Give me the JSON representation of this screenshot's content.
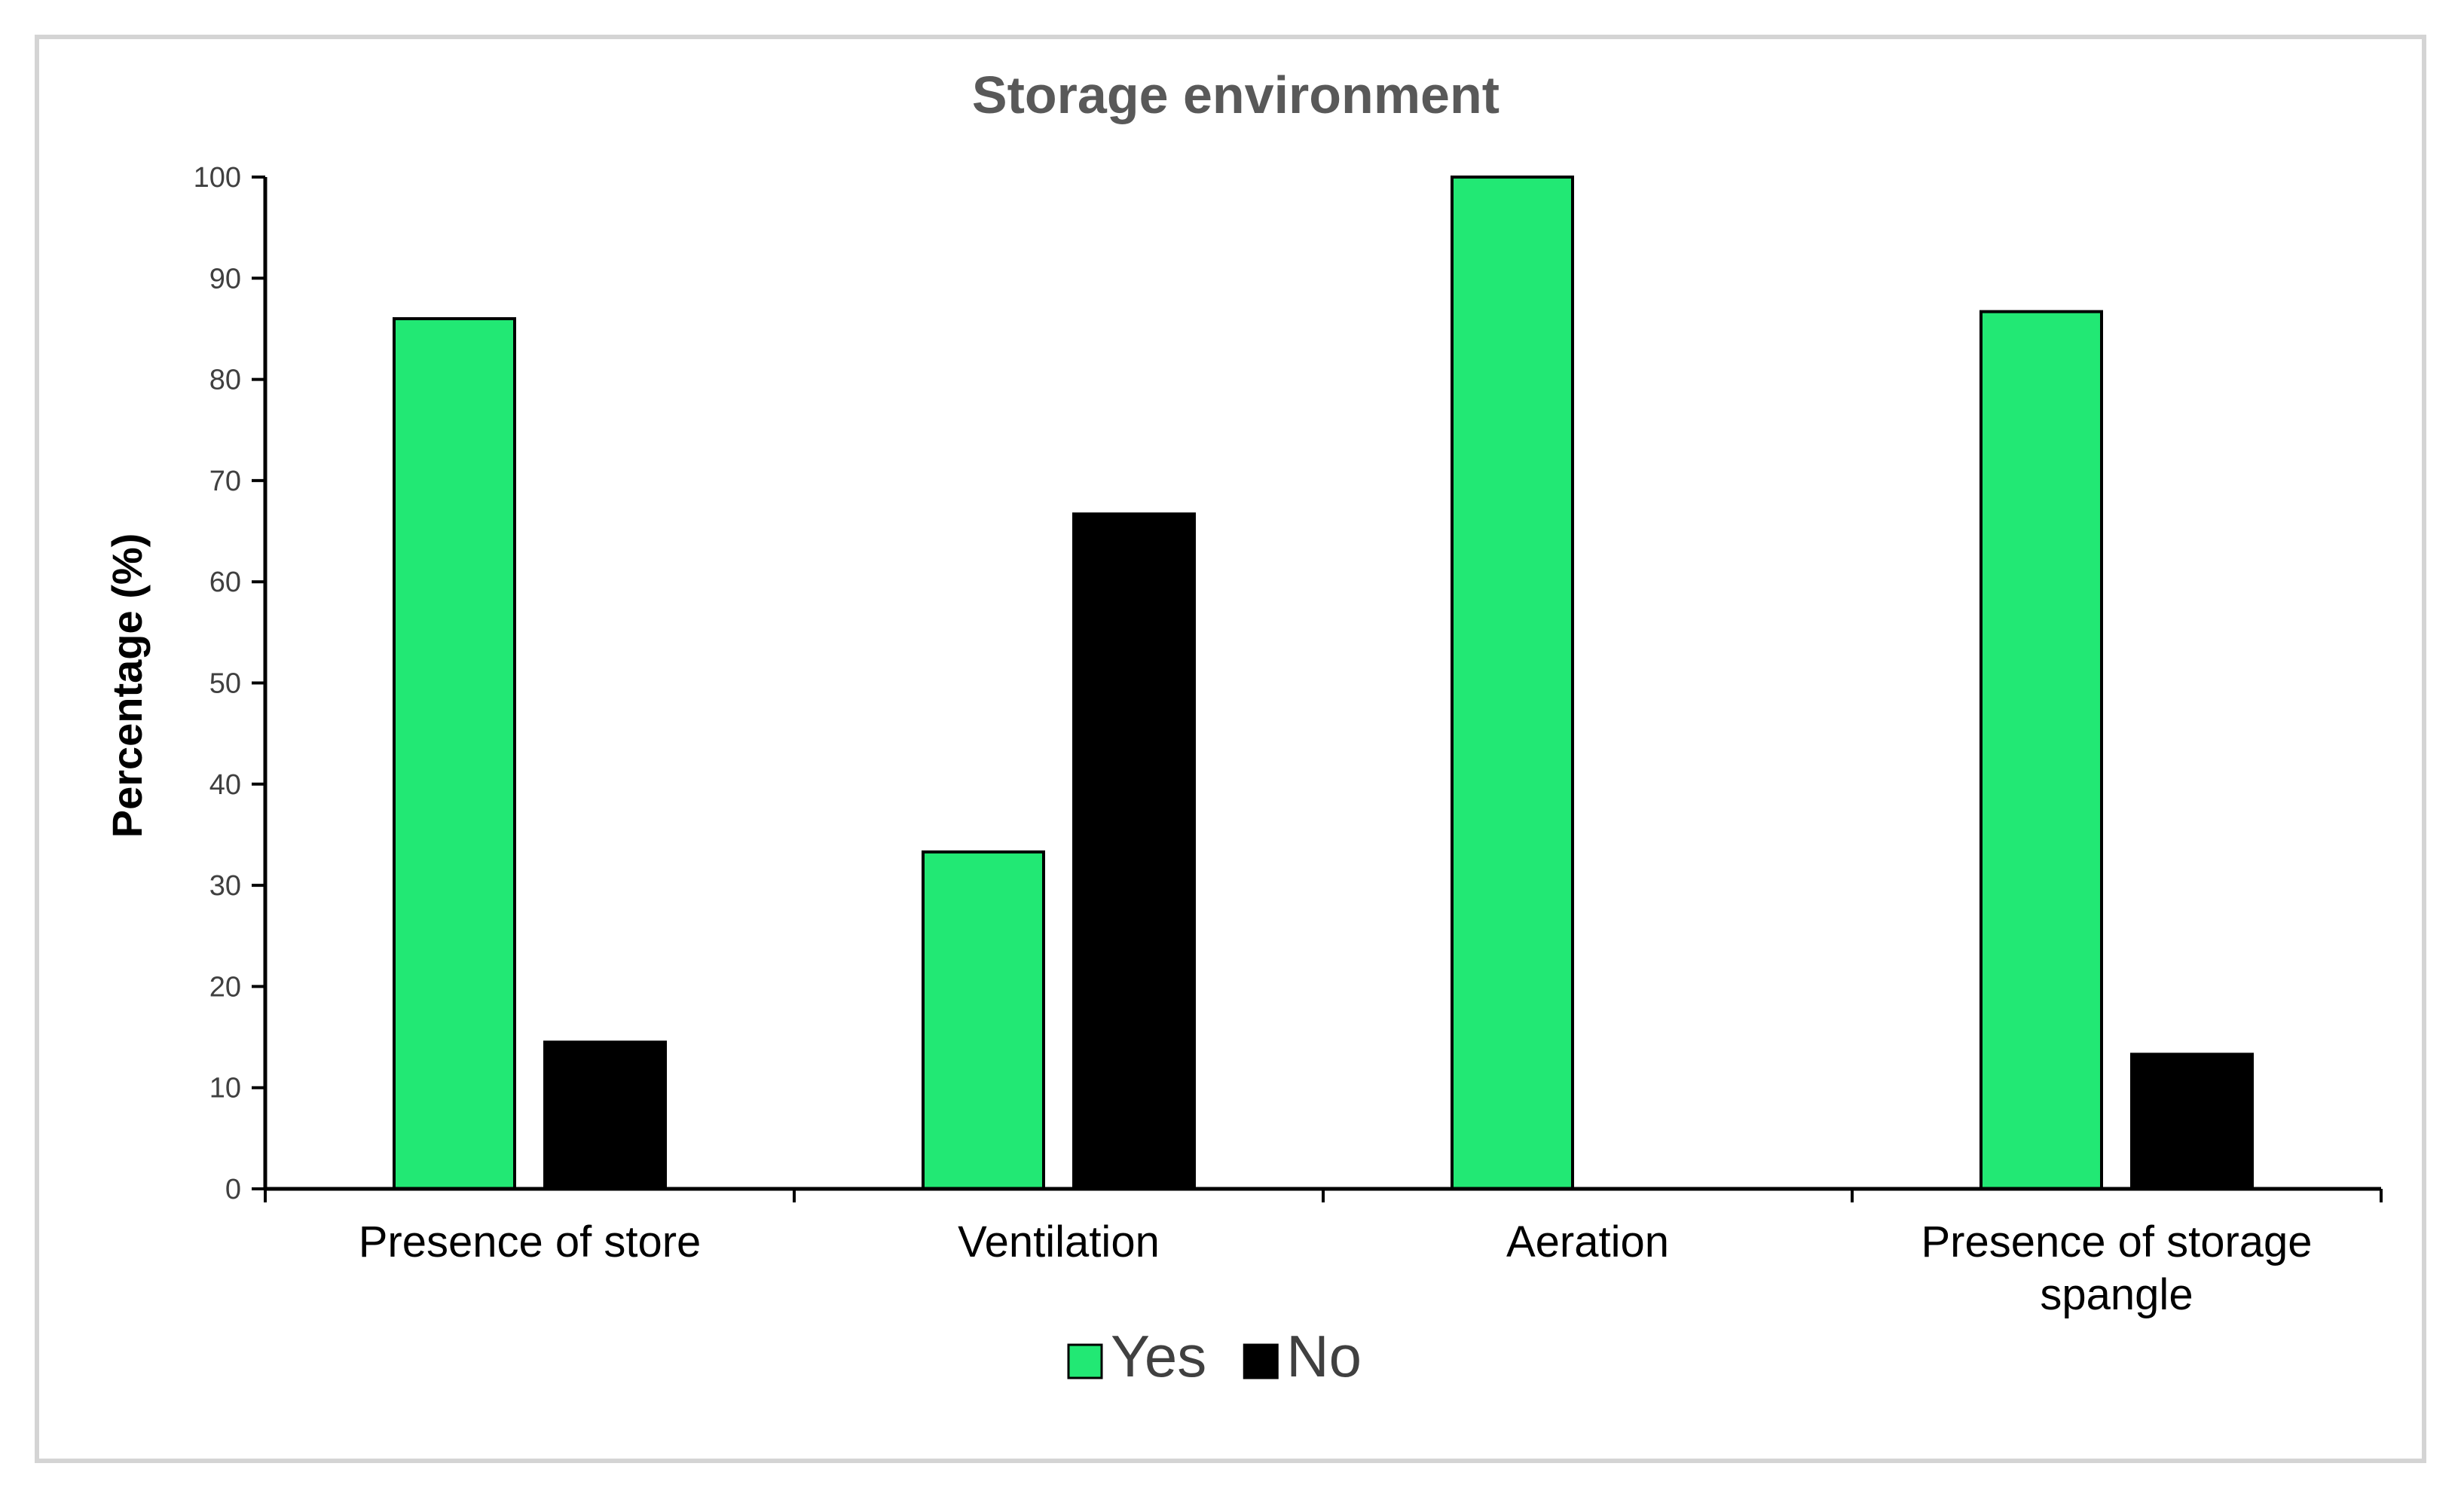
{
  "chart_data": {
    "type": "bar",
    "title": "Storage environment",
    "xlabel": "",
    "ylabel": "Percentage (%)",
    "ylim": [
      0,
      100
    ],
    "yticks": [
      0,
      10,
      20,
      30,
      40,
      50,
      60,
      70,
      80,
      90,
      100
    ],
    "categories": [
      "Presence of store",
      "Ventilation",
      "Aeration",
      "Presence of storage spangle"
    ],
    "category_lines": [
      [
        "Presence of store"
      ],
      [
        "Ventilation"
      ],
      [
        "Aeration"
      ],
      [
        "Presence of storage",
        "spangle"
      ]
    ],
    "series": [
      {
        "name": "Yes",
        "color": "#22e874",
        "values": [
          86,
          33.3,
          100,
          86.7
        ]
      },
      {
        "name": "No",
        "color": "#000000",
        "values": [
          14.5,
          66.7,
          0,
          13.3
        ]
      }
    ],
    "legend": {
      "placement": "bottom-center"
    },
    "grid": false
  }
}
